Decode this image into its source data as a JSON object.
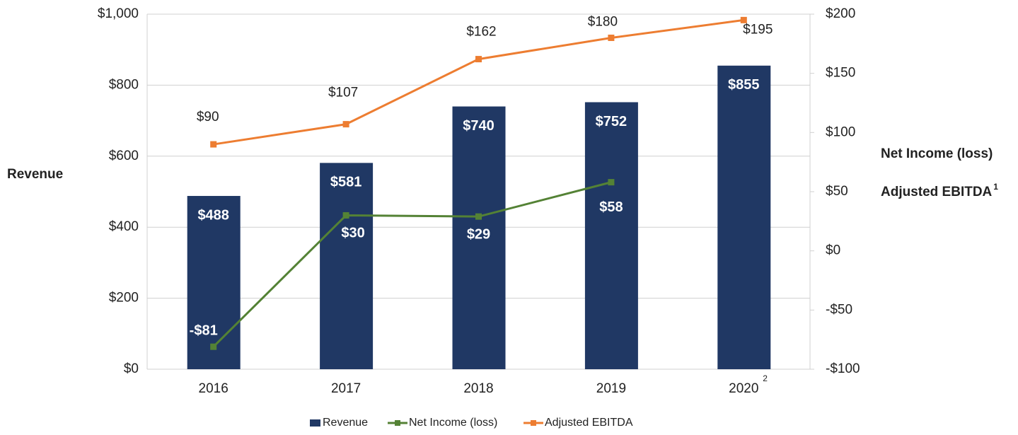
{
  "chart_data": {
    "type": "bar",
    "categories": [
      "2016",
      "2017",
      "2018",
      "2019",
      "2020"
    ],
    "category_footnote": "2",
    "y_label": "Revenue",
    "y2_labels": [
      "Net Income (loss)",
      "Adjusted EBITDA"
    ],
    "y2_label_footnote": "1",
    "ylim": [
      0,
      1000
    ],
    "yticks": [
      {
        "value": 0,
        "label": "$0"
      },
      {
        "value": 200,
        "label": "$200"
      },
      {
        "value": 400,
        "label": "$400"
      },
      {
        "value": 600,
        "label": "$600"
      },
      {
        "value": 800,
        "label": "$800"
      },
      {
        "value": 1000,
        "label": "$1,000"
      }
    ],
    "y2lim": [
      -100,
      200
    ],
    "y2ticks": [
      {
        "value": -100,
        "label": "-$100"
      },
      {
        "value": -50,
        "label": "-$50"
      },
      {
        "value": 0,
        "label": "$0"
      },
      {
        "value": 50,
        "label": "$50"
      },
      {
        "value": 100,
        "label": "$100"
      },
      {
        "value": 150,
        "label": "$150"
      },
      {
        "value": 200,
        "label": "$200"
      }
    ],
    "grid": true,
    "legend": "bottom",
    "series": [
      {
        "name": "Revenue",
        "type": "bar",
        "color": "#203864",
        "values": [
          488,
          581,
          740,
          752,
          855
        ],
        "value_labels": [
          "$488",
          "$581",
          "$740",
          "$752",
          "$855"
        ]
      },
      {
        "name": "Net Income (loss)",
        "type": "line",
        "axis": "y2",
        "color": "#548235",
        "values": [
          -81,
          30,
          29,
          58,
          null
        ],
        "value_labels": [
          "-$81",
          "$30",
          "$29",
          "$58",
          null
        ]
      },
      {
        "name": "Adjusted EBITDA",
        "type": "line",
        "axis": "y2",
        "color": "#ed7d31",
        "values": [
          90,
          107,
          162,
          180,
          195
        ],
        "value_labels": [
          "$90",
          "$107",
          "$162",
          "$180",
          "$195"
        ]
      }
    ]
  }
}
